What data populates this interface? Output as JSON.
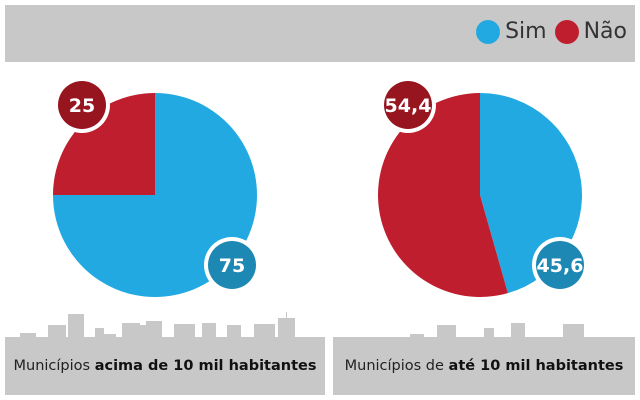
{
  "legend": [
    {
      "label": "Sim",
      "color": "#22a9e1"
    },
    {
      "label": "Não",
      "color": "#be1e2d"
    }
  ],
  "chart_data": [
    {
      "type": "pie",
      "title_normal": "Municípios ",
      "title_bold": "acima de 10 mil habitantes",
      "slices": [
        {
          "label": "Sim",
          "value": 75,
          "display": "75"
        },
        {
          "label": "Não",
          "value": 25,
          "display": "25"
        }
      ]
    },
    {
      "type": "pie",
      "title_normal": "Municípios de ",
      "title_bold": "até 10 mil habitantes",
      "slices": [
        {
          "label": "Sim",
          "value": 45.6,
          "display": "45,6"
        },
        {
          "label": "Não",
          "value": 54.4,
          "display": "54,4"
        }
      ]
    }
  ],
  "colors": {
    "sim": "#22a9e1",
    "nao": "#be1e2d",
    "sim_badge": "#1e88b4",
    "nao_badge": "#97151f",
    "panel": "#c8c8c8"
  }
}
